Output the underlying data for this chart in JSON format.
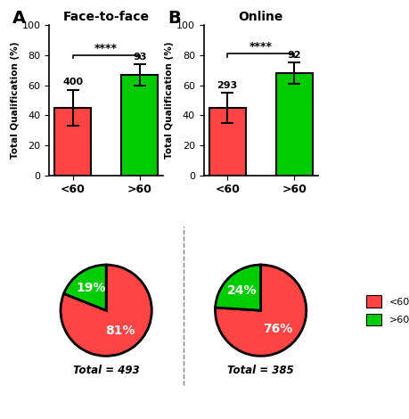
{
  "bar_A": {
    "categories": [
      "<60",
      ">60"
    ],
    "values": [
      45,
      67
    ],
    "errors": [
      12,
      7
    ],
    "colors": [
      "#FF4444",
      "#00CC00"
    ],
    "labels": [
      "400",
      "93"
    ],
    "title": "Face-to-face",
    "panel_label": "A",
    "ylabel": "Total Qualification (%)",
    "ylim": [
      0,
      100
    ],
    "sig_text": "****"
  },
  "bar_B": {
    "categories": [
      "<60",
      ">60"
    ],
    "values": [
      45,
      68
    ],
    "errors": [
      10,
      7
    ],
    "colors": [
      "#FF4444",
      "#00CC00"
    ],
    "labels": [
      "293",
      "92"
    ],
    "title": "Online",
    "panel_label": "B",
    "ylabel": "Total Qualification (%)",
    "ylim": [
      0,
      100
    ],
    "sig_text": "****"
  },
  "pie_A": {
    "values": [
      81,
      19
    ],
    "colors": [
      "#FF4444",
      "#00CC00"
    ],
    "labels": [
      "81%",
      "19%"
    ],
    "total_label": "Total = 493",
    "start_angle": 90,
    "label_radii": [
      0.55,
      0.6
    ]
  },
  "pie_B": {
    "values": [
      76,
      24
    ],
    "colors": [
      "#FF4444",
      "#00CC00"
    ],
    "labels": [
      "76%",
      "24%"
    ],
    "total_label": "Total = 385",
    "start_angle": 90,
    "label_radii": [
      0.55,
      0.6
    ]
  },
  "legend_labels": [
    "<60%",
    ">60%"
  ],
  "legend_colors": [
    "#FF4444",
    "#00CC00"
  ],
  "background_color": "#FFFFFF",
  "bar_edge_color": "#000000",
  "pie_edge_color": "#000000",
  "pie_edge_width": 2.0
}
